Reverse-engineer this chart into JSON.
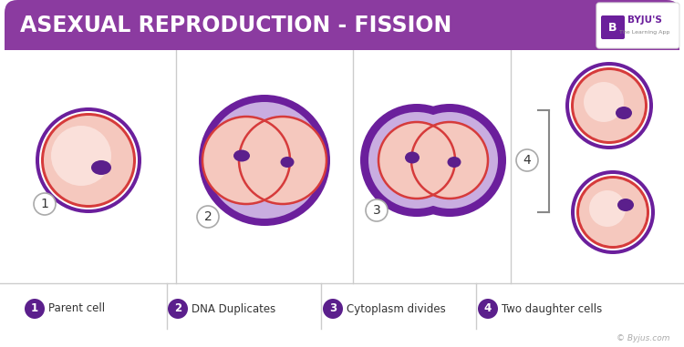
{
  "title": "ASEXUAL REPRODUCTION - FISSION",
  "title_bg": "#8B3BA0",
  "title_color": "#ffffff",
  "bg_color": "#ffffff",
  "cell_outer_color": "#6B1F9C",
  "cell_inner_color": "#F5C8BE",
  "cell_inner_lighter": "#FAE0DA",
  "cell_border_red": "#D63B3B",
  "nucleus_color": "#5B1F8C",
  "cell_purple_bg": "#C9ADE0",
  "legend_items": [
    {
      "num": "1",
      "label": "Parent cell"
    },
    {
      "num": "2",
      "label": "DNA Duplicates"
    },
    {
      "num": "3",
      "label": "Cytoplasm divides"
    },
    {
      "num": "4",
      "label": "Two daughter cells"
    }
  ],
  "copyright": "© Byjus.com",
  "divider_color": "#cccccc"
}
